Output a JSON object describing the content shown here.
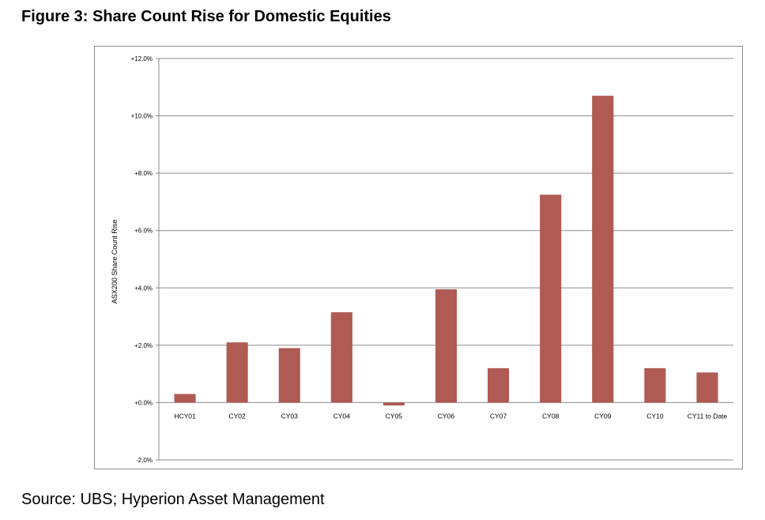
{
  "title": "Figure 3: Share Count Rise for Domestic Equities",
  "source": "Source: UBS; Hyperion Asset Management",
  "chart_data": {
    "type": "bar",
    "ylabel": "ASX200 Share Count Rise",
    "xlabel": "",
    "categories": [
      "HCY01",
      "CY02",
      "CY03",
      "CY04",
      "CY05",
      "CY06",
      "CY07",
      "CY08",
      "CY09",
      "CY10",
      "CY11 to Date"
    ],
    "series": [
      {
        "values": [
          0.3,
          2.1,
          1.9,
          3.15,
          -0.1,
          3.95,
          1.2,
          7.25,
          10.7,
          1.2,
          1.05
        ]
      }
    ],
    "ylim": [
      -2,
      12
    ],
    "yticks": [
      -2,
      0,
      2,
      4,
      6,
      8,
      10,
      12
    ],
    "ytick_labels": [
      "-2.0%",
      "+0.0%",
      "+2.0%",
      "+4.0%",
      "+6.0%",
      "+8.0%",
      "+10.0%",
      "+12.0%"
    ],
    "grid": true,
    "legend": "none",
    "bar_color": "#b05a54",
    "grid_color": "#8c8c8c"
  }
}
